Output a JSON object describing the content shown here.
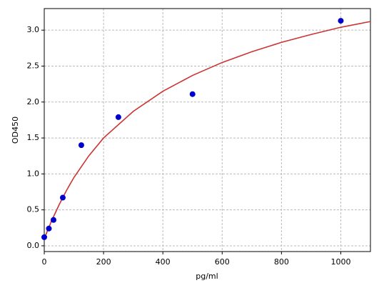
{
  "chart_data": {
    "type": "scatter",
    "xlabel": "pg/ml",
    "ylabel": "OD450",
    "xlim": [
      0,
      1100
    ],
    "ylim": [
      -0.08,
      3.3
    ],
    "xticks": [
      0,
      200,
      400,
      600,
      800,
      1000
    ],
    "yticks": [
      {
        "value": 0,
        "label": "0.0"
      },
      0.5,
      {
        "value": 1,
        "label": "1.0"
      },
      1.5,
      {
        "value": 2,
        "label": "2.0"
      },
      2.5,
      {
        "value": 3,
        "label": "3.0"
      }
    ],
    "grid": true,
    "series": [
      {
        "type": "line",
        "color": "#cc3333",
        "x": [
          0,
          10,
          25,
          50,
          75,
          100,
          150,
          200,
          300,
          400,
          500,
          600,
          700,
          800,
          900,
          1000,
          1100
        ],
        "values": [
          0.1,
          0.2,
          0.35,
          0.57,
          0.77,
          0.95,
          1.25,
          1.5,
          1.87,
          2.15,
          2.37,
          2.55,
          2.7,
          2.83,
          2.94,
          3.04,
          3.12
        ]
      },
      {
        "type": "scatter",
        "color": "#0000cc",
        "x": [
          0,
          15.6,
          31.25,
          62.5,
          125,
          250,
          500,
          1000
        ],
        "values": [
          0.12,
          0.24,
          0.36,
          0.67,
          1.4,
          1.79,
          2.11,
          3.13
        ]
      }
    ]
  }
}
